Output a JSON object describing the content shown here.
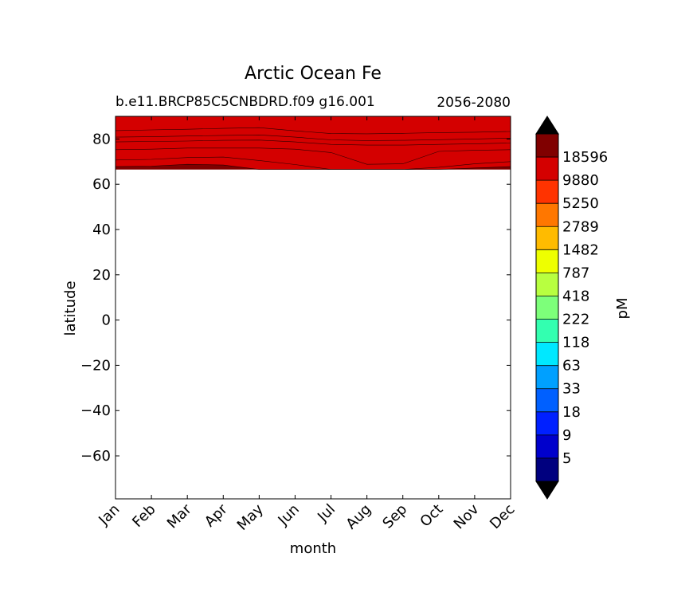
{
  "chart_data": {
    "type": "contour",
    "title": "Arctic Ocean Fe",
    "subtitle_left": "b.e11.BRCP85C5CNBDRD.f09 g16.001",
    "subtitle_right": "2056-2080",
    "xlabel": "month",
    "ylabel": "latitude",
    "x_categories": [
      "Jan",
      "Feb",
      "Mar",
      "Apr",
      "May",
      "Jun",
      "Jul",
      "Aug",
      "Sep",
      "Oct",
      "Nov",
      "Dec"
    ],
    "ylim": [
      -79,
      90
    ],
    "yticks": [
      80,
      60,
      40,
      20,
      0,
      -20,
      -40,
      -60
    ],
    "ytick_labels": [
      "80",
      "60",
      "40",
      "20",
      "0",
      "−20",
      "−40",
      "−60"
    ],
    "data_lat_range": [
      66.5,
      90
    ],
    "colorbar": {
      "label": "pM",
      "extend": "both",
      "levels_labeled": [
        "18596",
        "9880",
        "5250",
        "2789",
        "1482",
        "787",
        "418",
        "222",
        "118",
        "63",
        "33",
        "18",
        "9",
        "5"
      ],
      "colors_top_to_bottom": [
        "#800000",
        "#d40000",
        "#ff3300",
        "#ff7700",
        "#ffbb00",
        "#eeff00",
        "#b8ff40",
        "#7dff7a",
        "#33ffb0",
        "#00e8ff",
        "#00a0ff",
        "#0060ff",
        "#0020ff",
        "#0000cc",
        "#00007f"
      ],
      "over_color": "#000000",
      "under_color": "#000000"
    },
    "contour_boundaries": [
      {
        "band_above": "#b8ff40",
        "lat": [
          83.7,
          84.0,
          84.3,
          84.7,
          85.0,
          83.6,
          82.4,
          82.3,
          82.5,
          82.8,
          83.0,
          83.3
        ]
      },
      {
        "band_above": "#eeff00",
        "lat": [
          80.8,
          81.0,
          81.3,
          81.6,
          81.8,
          80.8,
          79.6,
          79.3,
          79.4,
          79.7,
          80.0,
          80.4
        ]
      },
      {
        "band_above": "#ffbb00",
        "lat": [
          78.7,
          78.9,
          79.1,
          79.4,
          79.5,
          78.7,
          77.6,
          77.3,
          77.3,
          77.6,
          77.9,
          78.2
        ]
      },
      {
        "band_above": "#ff7700",
        "lat": [
          75.3,
          75.5,
          76.0,
          76.0,
          76.0,
          75.5,
          74.0,
          68.8,
          69.0,
          74.5,
          75.0,
          75.3
        ]
      },
      {
        "band_above": "#ff3300",
        "lat": [
          70.7,
          71.0,
          71.8,
          72.0,
          70.5,
          68.7,
          66.5,
          66.5,
          66.5,
          67.5,
          69.0,
          70.0
        ]
      },
      {
        "band_above": "#d40000",
        "lat": [
          67.8,
          68.0,
          68.8,
          68.5,
          66.5,
          66.5,
          66.5,
          66.5,
          66.5,
          66.5,
          67.2,
          67.8
        ]
      }
    ],
    "deepest_band_color": "#800000",
    "grid": false,
    "legend": "colorbar-right"
  }
}
